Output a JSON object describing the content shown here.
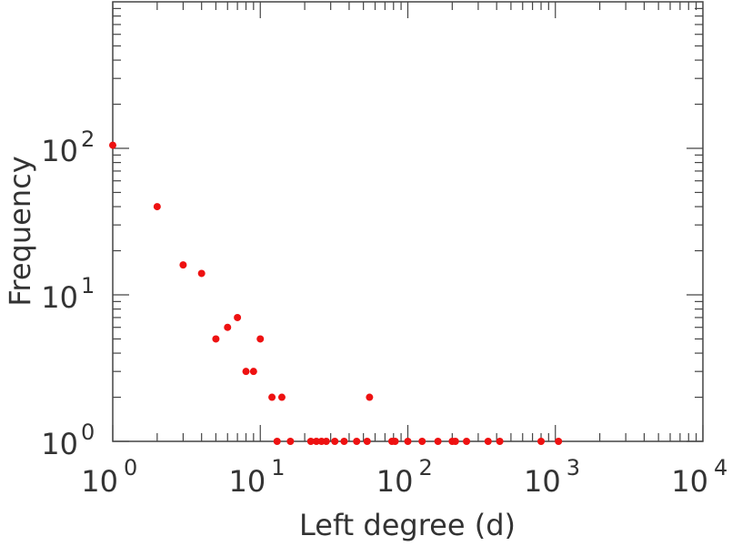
{
  "chart_data": {
    "type": "scatter",
    "xlabel": "Left degree (d)",
    "ylabel": "Frequency",
    "xscale": "log",
    "yscale": "log",
    "xlim": [
      1,
      10000
    ],
    "ylim": [
      1,
      1000
    ],
    "grid": false,
    "legend": "none",
    "marker_color": "#ee1111",
    "axis_color": "#444444",
    "x_ticks": [
      {
        "base": "10",
        "exp": "0",
        "value": 1
      },
      {
        "base": "10",
        "exp": "1",
        "value": 10
      },
      {
        "base": "10",
        "exp": "2",
        "value": 100
      },
      {
        "base": "10",
        "exp": "3",
        "value": 1000
      },
      {
        "base": "10",
        "exp": "4",
        "value": 10000
      }
    ],
    "y_ticks": [
      {
        "base": "10",
        "exp": "0",
        "value": 1
      },
      {
        "base": "10",
        "exp": "1",
        "value": 10
      },
      {
        "base": "10",
        "exp": "2",
        "value": 100
      }
    ],
    "series": [
      {
        "points": [
          {
            "x": 1,
            "y": 105
          },
          {
            "x": 2,
            "y": 40
          },
          {
            "x": 3,
            "y": 16
          },
          {
            "x": 4,
            "y": 14
          },
          {
            "x": 5,
            "y": 5
          },
          {
            "x": 6,
            "y": 6
          },
          {
            "x": 7,
            "y": 7
          },
          {
            "x": 8,
            "y": 3
          },
          {
            "x": 9,
            "y": 3
          },
          {
            "x": 10,
            "y": 5
          },
          {
            "x": 12,
            "y": 2
          },
          {
            "x": 14,
            "y": 2
          },
          {
            "x": 13,
            "y": 1
          },
          {
            "x": 16,
            "y": 1
          },
          {
            "x": 22,
            "y": 1
          },
          {
            "x": 24,
            "y": 1
          },
          {
            "x": 26,
            "y": 1
          },
          {
            "x": 28,
            "y": 1
          },
          {
            "x": 32,
            "y": 1
          },
          {
            "x": 37,
            "y": 1
          },
          {
            "x": 45,
            "y": 1
          },
          {
            "x": 53,
            "y": 1
          },
          {
            "x": 55,
            "y": 2
          },
          {
            "x": 78,
            "y": 1
          },
          {
            "x": 82,
            "y": 1
          },
          {
            "x": 100,
            "y": 1
          },
          {
            "x": 125,
            "y": 1
          },
          {
            "x": 160,
            "y": 1
          },
          {
            "x": 200,
            "y": 1
          },
          {
            "x": 210,
            "y": 1
          },
          {
            "x": 250,
            "y": 1
          },
          {
            "x": 350,
            "y": 1
          },
          {
            "x": 420,
            "y": 1
          },
          {
            "x": 800,
            "y": 1
          },
          {
            "x": 1050,
            "y": 1
          }
        ]
      }
    ]
  }
}
